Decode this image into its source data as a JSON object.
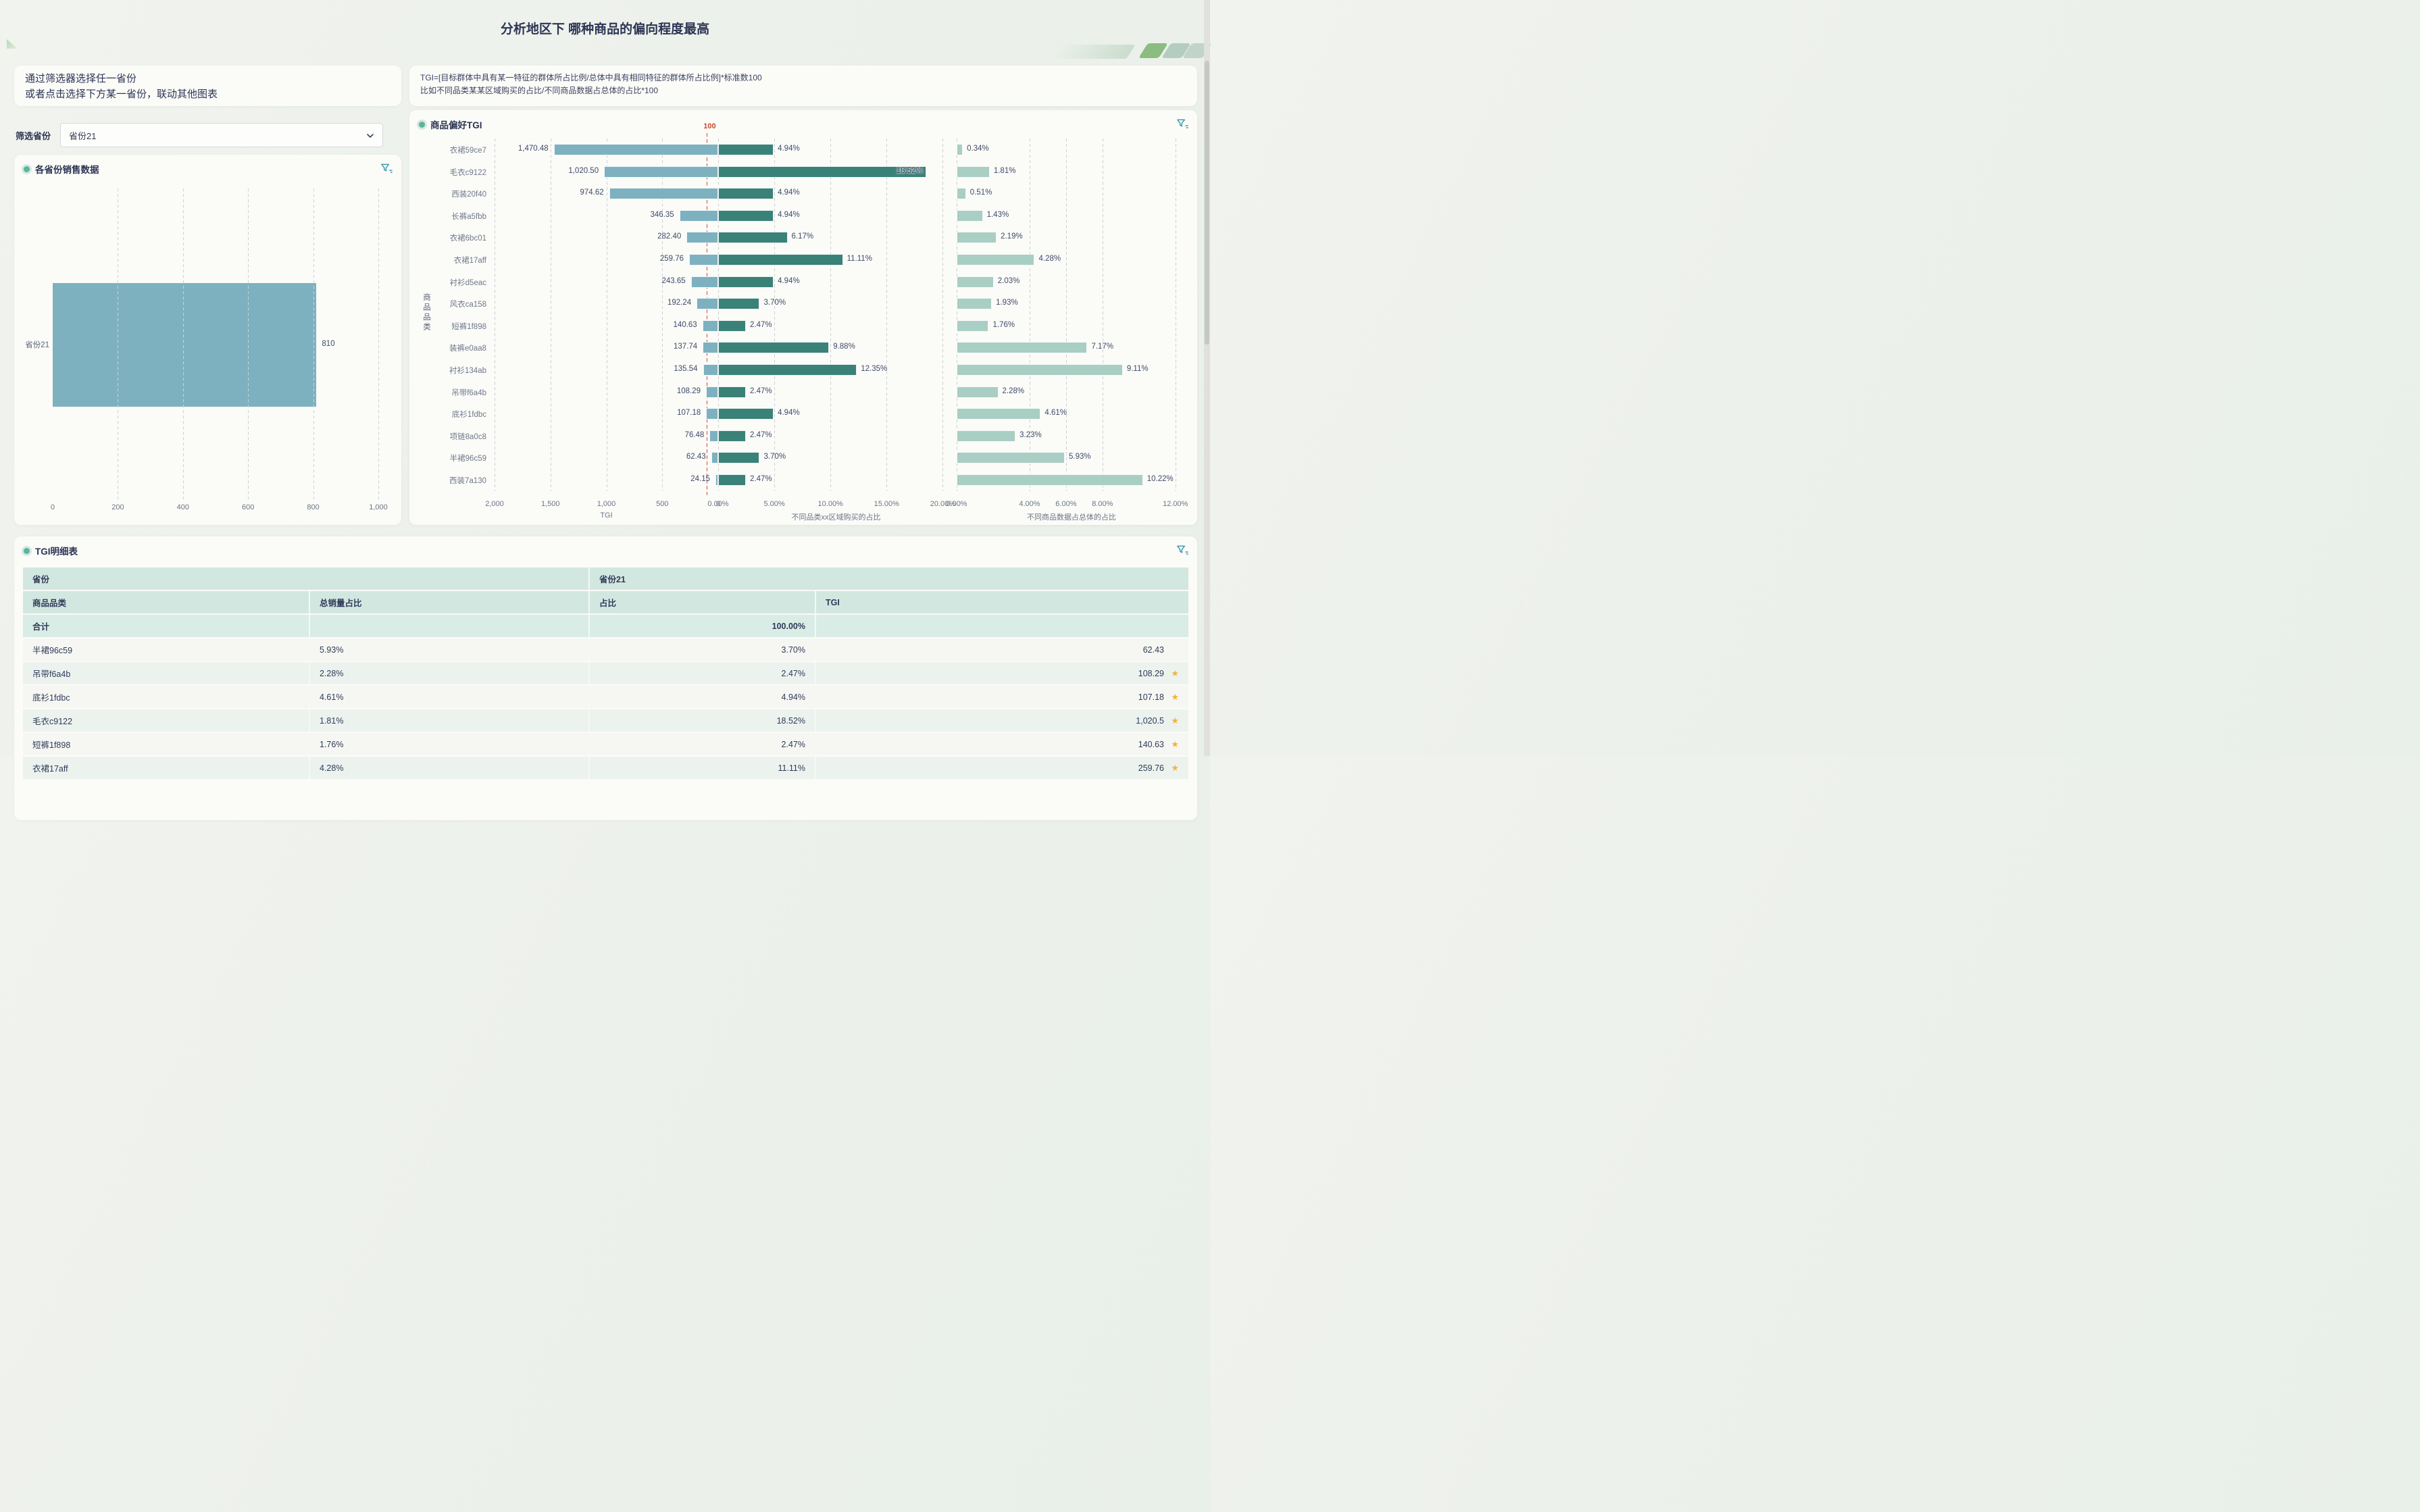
{
  "page": {
    "title": "分析地区下 哪种商品的偏向程度最高"
  },
  "hint": {
    "line1": "通过筛选器选择任一省份",
    "line2": "或者点击选择下方某一省份，联动其他图表"
  },
  "formula": {
    "line1": "TGI=[目标群体中具有某一特征的群体所占比例/总体中具有相同特征的群体所占比例]*标准数100",
    "line2": "比如不同品类某某区域购买的占比/不同商品数据占总体的占比*100"
  },
  "filter": {
    "label": "筛选省份",
    "value": "省份21"
  },
  "colors": {
    "accent_teal": "#3596ad",
    "bar_blue": "#7db1bf",
    "bar_green": "#3a8177",
    "bar_sage": "#a9cec3",
    "ref_red": "#c7492f",
    "table_header_bg": "#d3e7e1",
    "star": "#f2b33d",
    "title_text": "#2c3554"
  },
  "chart_data": [
    {
      "type": "bar",
      "orientation": "horizontal",
      "title": "各省份销售数据",
      "categories": [
        "省份21"
      ],
      "values": [
        810
      ],
      "value_labels": [
        "810"
      ],
      "xlabel": "",
      "ylabel": "",
      "xlim": [
        0,
        1000
      ],
      "xticks": [
        {
          "label": "0",
          "value": 0
        },
        {
          "label": "200",
          "value": 200
        },
        {
          "label": "400",
          "value": 400
        },
        {
          "label": "600",
          "value": 600
        },
        {
          "label": "800",
          "value": 800
        },
        {
          "label": "1,000",
          "value": 1000
        }
      ],
      "grid": true
    },
    {
      "type": "bar",
      "orientation": "horizontal",
      "title": "商品偏好TGI",
      "ylabel": "商品品类",
      "categories": [
        "衣裙59ce7",
        "毛衣c9122",
        "西装20f40",
        "长裤a5fbb",
        "衣裙6bc01",
        "衣裙17aff",
        "衬衫d5eac",
        "风衣ca158",
        "短裤1f898",
        "装裤e0aa8",
        "衬衫134ab",
        "吊带f6a4b",
        "底衫1fdbc",
        "项链8a0c8",
        "半裙96c59",
        "西装7a130"
      ],
      "series": [
        {
          "name": "TGI",
          "values": [
            1470.48,
            1020.5,
            974.62,
            346.35,
            282.4,
            259.76,
            243.65,
            192.24,
            140.63,
            137.74,
            135.54,
            108.29,
            107.18,
            76.48,
            62.43,
            24.15
          ],
          "value_labels": [
            "1,470.48",
            "1,020.50",
            "974.62",
            "346.35",
            "282.40",
            "259.76",
            "243.65",
            "192.24",
            "140.63",
            "137.74",
            "135.54",
            "108.29",
            "107.18",
            "76.48",
            "62.43",
            "24.15"
          ],
          "color": "#7db1bf",
          "axis": {
            "title": "TGI",
            "max": 2000,
            "reversed": true,
            "ticks": [
              {
                "label": "2,000",
                "value": 2000
              },
              {
                "label": "1,500",
                "value": 1500
              },
              {
                "label": "1,000",
                "value": 1000
              },
              {
                "label": "500",
                "value": 500
              },
              {
                "label": "0",
                "value": 0
              }
            ]
          },
          "reference_line": {
            "value": 100,
            "label": "100",
            "color": "#c7492f"
          }
        },
        {
          "name": "不同品类xx区域购买的占比",
          "values": [
            4.94,
            18.52,
            4.94,
            4.94,
            6.17,
            11.11,
            4.94,
            3.7,
            2.47,
            9.88,
            12.35,
            2.47,
            4.94,
            2.47,
            3.7,
            2.47
          ],
          "value_labels": [
            "4.94%",
            "18.52%",
            "4.94%",
            "4.94%",
            "6.17%",
            "11.11%",
            "4.94%",
            "3.70%",
            "2.47%",
            "9.88%",
            "12.35%",
            "2.47%",
            "4.94%",
            "2.47%",
            "3.70%",
            "2.47%"
          ],
          "color": "#3a8177",
          "axis": {
            "title": "不同品类xx区域购买的占比",
            "max": 21,
            "ticks": [
              {
                "label": "0.00%",
                "value": 0
              },
              {
                "label": "5.00%",
                "value": 5
              },
              {
                "label": "10.00%",
                "value": 10
              },
              {
                "label": "15.00%",
                "value": 15
              },
              {
                "label": "20.00%",
                "value": 20
              }
            ]
          }
        },
        {
          "name": "不同商品数据占总体的占比",
          "values": [
            0.34,
            1.81,
            0.51,
            1.43,
            2.19,
            4.28,
            2.03,
            1.93,
            1.76,
            7.17,
            9.11,
            2.28,
            4.61,
            3.23,
            5.93,
            10.22
          ],
          "value_labels": [
            "0.34%",
            "1.81%",
            "0.51%",
            "1.43%",
            "2.19%",
            "4.28%",
            "2.03%",
            "1.93%",
            "1.76%",
            "7.17%",
            "9.11%",
            "2.28%",
            "4.61%",
            "3.23%",
            "5.93%",
            "10.22%"
          ],
          "color": "#a9cec3",
          "axis": {
            "title": "不同商品数据占总体的占比",
            "max": 12.6,
            "ticks": [
              {
                "label": "0.00%",
                "value": 0
              },
              {
                "label": "4.00%",
                "value": 4
              },
              {
                "label": "6.00%",
                "value": 6
              },
              {
                "label": "8.00%",
                "value": 8
              },
              {
                "label": "12.00%",
                "value": 12
              }
            ]
          }
        }
      ]
    }
  ],
  "table": {
    "title": "TGI明细表",
    "province_header": "省份",
    "province_value": "省份21",
    "columns": [
      "商品品类",
      "总销量占比",
      "占比",
      "TGI"
    ],
    "total": {
      "label": "合计",
      "share": "100.00%"
    },
    "rows": [
      {
        "category": "半裙96c59",
        "total_share": "5.93%",
        "share": "3.70%",
        "tgi": "62.43",
        "star": false
      },
      {
        "category": "吊带f6a4b",
        "total_share": "2.28%",
        "share": "2.47%",
        "tgi": "108.29",
        "star": true
      },
      {
        "category": "底衫1fdbc",
        "total_share": "4.61%",
        "share": "4.94%",
        "tgi": "107.18",
        "star": true
      },
      {
        "category": "毛衣c9122",
        "total_share": "1.81%",
        "share": "18.52%",
        "tgi": "1,020.5",
        "star": true
      },
      {
        "category": "短裤1f898",
        "total_share": "1.76%",
        "share": "2.47%",
        "tgi": "140.63",
        "star": true
      },
      {
        "category": "衣裙17aff",
        "total_share": "4.28%",
        "share": "11.11%",
        "tgi": "259.76",
        "star": true
      }
    ]
  }
}
